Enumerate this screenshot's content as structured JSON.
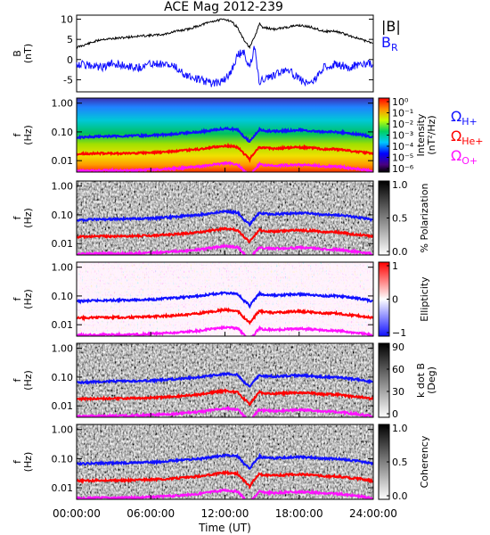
{
  "title": "ACE Mag 2012-239",
  "colors": {
    "black": "#000000",
    "blue": "#1010ff",
    "red": "#ff0000",
    "magenta": "#ff10ff"
  },
  "chart_data": [
    {
      "type": "line",
      "panel": "B",
      "ylabel_lines": [
        "B",
        "(nT)"
      ],
      "ylim": [
        -8,
        11
      ],
      "yticks": [
        -5,
        0,
        5,
        10
      ],
      "legend": [
        {
          "label": "|B|",
          "sub": "",
          "color": "#000000"
        },
        {
          "label": "B",
          "sub": "R",
          "color": "#1010ff"
        }
      ],
      "series": [
        {
          "name": "|B|",
          "color": "#000000",
          "x": [
            0,
            1,
            2,
            3,
            4,
            5,
            6,
            7,
            8,
            9,
            10,
            11,
            12,
            12.5,
            13,
            13.5,
            14,
            14.4,
            14.8,
            15,
            16,
            17,
            18,
            19,
            20,
            21,
            22,
            23,
            24
          ],
          "y": [
            3,
            4,
            5,
            5.2,
            5.5,
            5.8,
            6,
            6.2,
            7,
            7.5,
            8.5,
            9.5,
            10,
            9.5,
            8,
            5,
            3,
            5.5,
            9,
            8,
            7.5,
            8,
            8.5,
            8,
            7,
            7,
            6,
            5,
            4
          ]
        },
        {
          "name": "B_R",
          "color": "#1010ff",
          "x": [
            0,
            1,
            2,
            3,
            4,
            5,
            6,
            7,
            8,
            9,
            10,
            11,
            12,
            12.5,
            13,
            13.5,
            14,
            14.4,
            14.8,
            15,
            16,
            17,
            18,
            19,
            20,
            21,
            22,
            23,
            24
          ],
          "y": [
            -1,
            -1.5,
            -2,
            -1,
            -1.5,
            -2,
            -1,
            -1,
            -2,
            -4,
            -5,
            -6,
            -5,
            -3,
            1,
            2,
            -2,
            3,
            -6,
            -5,
            -4,
            -2,
            -5,
            -6,
            -2,
            -1,
            -2,
            -1,
            -1
          ]
        }
      ]
    },
    {
      "type": "heatmap",
      "panel": "Intensity",
      "ylabel_lines": [
        "f",
        "(Hz)"
      ],
      "colorbar_label_lines": [
        "Intensity",
        "(nT²/Hz)"
      ],
      "colorbar_ticks": [
        "10⁰",
        "10⁻¹",
        "10⁻²",
        "10⁻³",
        "10⁻⁴",
        "10⁻⁵",
        "10⁻⁶"
      ],
      "cmap": "rainbow",
      "legend": [
        {
          "label": "Ω",
          "sub": "H+",
          "color": "#1010ff"
        },
        {
          "label": "Ω",
          "sub": "He+",
          "color": "#ff0000"
        },
        {
          "label": "Ω",
          "sub": "O+",
          "color": "#ff10ff"
        }
      ]
    },
    {
      "type": "heatmap",
      "panel": "Polarization",
      "ylabel_lines": [
        "f",
        "(Hz)"
      ],
      "colorbar_label_lines": [
        "% Polarization"
      ],
      "colorbar_ticks": [
        "1.0",
        "0.5",
        "0.0"
      ],
      "cmap": "gray_reversed"
    },
    {
      "type": "heatmap",
      "panel": "Ellipticity",
      "ylabel_lines": [
        "f",
        "(Hz)"
      ],
      "colorbar_label_lines": [
        "Ellipticity"
      ],
      "colorbar_ticks": [
        "1",
        "0",
        "−1"
      ],
      "cmap": "blue_white_red"
    },
    {
      "type": "heatmap",
      "panel": "k dot B",
      "ylabel_lines": [
        "f",
        "(Hz)"
      ],
      "colorbar_label_lines": [
        "k dot B",
        "(Deg)"
      ],
      "colorbar_ticks": [
        "90",
        "60",
        "30",
        "0"
      ],
      "cmap": "gray_reversed"
    },
    {
      "type": "heatmap",
      "panel": "Coherency",
      "ylabel_lines": [
        "f",
        "(Hz)"
      ],
      "colorbar_label_lines": [
        "Coherency"
      ],
      "colorbar_ticks": [
        "1.0",
        "0.5",
        "0.0"
      ],
      "cmap": "gray_reversed"
    }
  ],
  "spectrogram_axes": {
    "y_scale": "log",
    "ylim": [
      0.004,
      1.5
    ],
    "yticks": [
      "1.00",
      "0.10",
      "0.01"
    ]
  },
  "gyrofrequency_lines": [
    {
      "name": "ΩH+",
      "color": "#1010ff",
      "x": [
        0,
        2,
        4,
        6,
        8,
        10,
        11,
        12,
        13,
        13.5,
        14,
        14.4,
        14.8,
        15,
        16,
        17,
        18,
        19,
        20,
        21,
        22,
        23,
        24
      ],
      "y": [
        0.065,
        0.07,
        0.072,
        0.075,
        0.085,
        0.1,
        0.115,
        0.13,
        0.12,
        0.07,
        0.045,
        0.075,
        0.12,
        0.11,
        0.105,
        0.11,
        0.115,
        0.11,
        0.1,
        0.1,
        0.09,
        0.08,
        0.065
      ]
    },
    {
      "name": "ΩHe+",
      "color": "#ff0000",
      "x": [
        0,
        2,
        4,
        6,
        8,
        10,
        11,
        12,
        13,
        13.5,
        14,
        14.4,
        14.8,
        15,
        16,
        17,
        18,
        19,
        20,
        21,
        22,
        23,
        24
      ],
      "y": [
        0.017,
        0.018,
        0.018,
        0.019,
        0.021,
        0.025,
        0.029,
        0.033,
        0.03,
        0.018,
        0.011,
        0.019,
        0.03,
        0.028,
        0.026,
        0.028,
        0.029,
        0.028,
        0.025,
        0.025,
        0.022,
        0.02,
        0.017
      ]
    },
    {
      "name": "ΩO+",
      "color": "#ff10ff",
      "x": [
        0,
        2,
        4,
        6,
        8,
        10,
        11,
        12,
        13,
        13.5,
        14,
        14.4,
        14.8,
        15,
        16,
        17,
        18,
        19,
        20,
        21,
        22,
        23,
        24
      ],
      "y": [
        0.0043,
        0.0045,
        0.0045,
        0.0048,
        0.0053,
        0.0062,
        0.0072,
        0.0082,
        0.0075,
        0.0045,
        0.0029,
        0.0048,
        0.0075,
        0.007,
        0.0066,
        0.007,
        0.0072,
        0.007,
        0.0063,
        0.0063,
        0.0056,
        0.005,
        0.0043
      ]
    }
  ],
  "time_axis": {
    "xlim": [
      0,
      24
    ],
    "tick_hours": [
      0,
      6,
      12,
      18,
      24
    ],
    "tick_labels": [
      "00:00:00",
      "06:00:00",
      "12:00:00",
      "18:00:00",
      "24:00:00"
    ],
    "xlabel": "Time (UT)"
  }
}
